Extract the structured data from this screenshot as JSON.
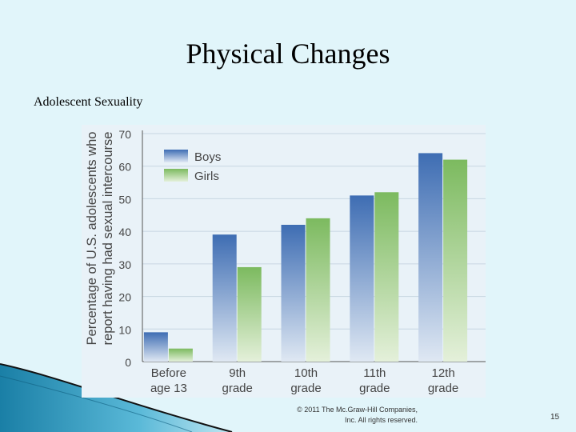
{
  "slide": {
    "title": "Physical Changes",
    "subtitle": "Adolescent Sexuality",
    "copyright_line1": "© 2011 The Mc.Graw-Hill Companies,",
    "copyright_line2": "Inc. All rights reserved.",
    "page_number": "15"
  },
  "colors": {
    "background": "#e1f5fa",
    "boys": "#3e6db3",
    "girls": "#7cba5f",
    "axis_text": "#444444"
  },
  "chart_data": {
    "type": "bar",
    "ylabel": "Percentage of U.S. adolescents who report having had sexual intercourse",
    "ylim": [
      0,
      70
    ],
    "yticks": [
      0,
      10,
      20,
      30,
      40,
      50,
      60,
      70
    ],
    "grid": true,
    "legend_position": "top-left",
    "categories": [
      [
        "Before",
        "age 13"
      ],
      [
        "9th",
        "grade"
      ],
      [
        "10th",
        "grade"
      ],
      [
        "11th",
        "grade"
      ],
      [
        "12th",
        "grade"
      ]
    ],
    "series": [
      {
        "name": "Boys",
        "values": [
          9,
          39,
          42,
          51,
          64
        ]
      },
      {
        "name": "Girls",
        "values": [
          4,
          29,
          44,
          52,
          62
        ]
      }
    ]
  }
}
